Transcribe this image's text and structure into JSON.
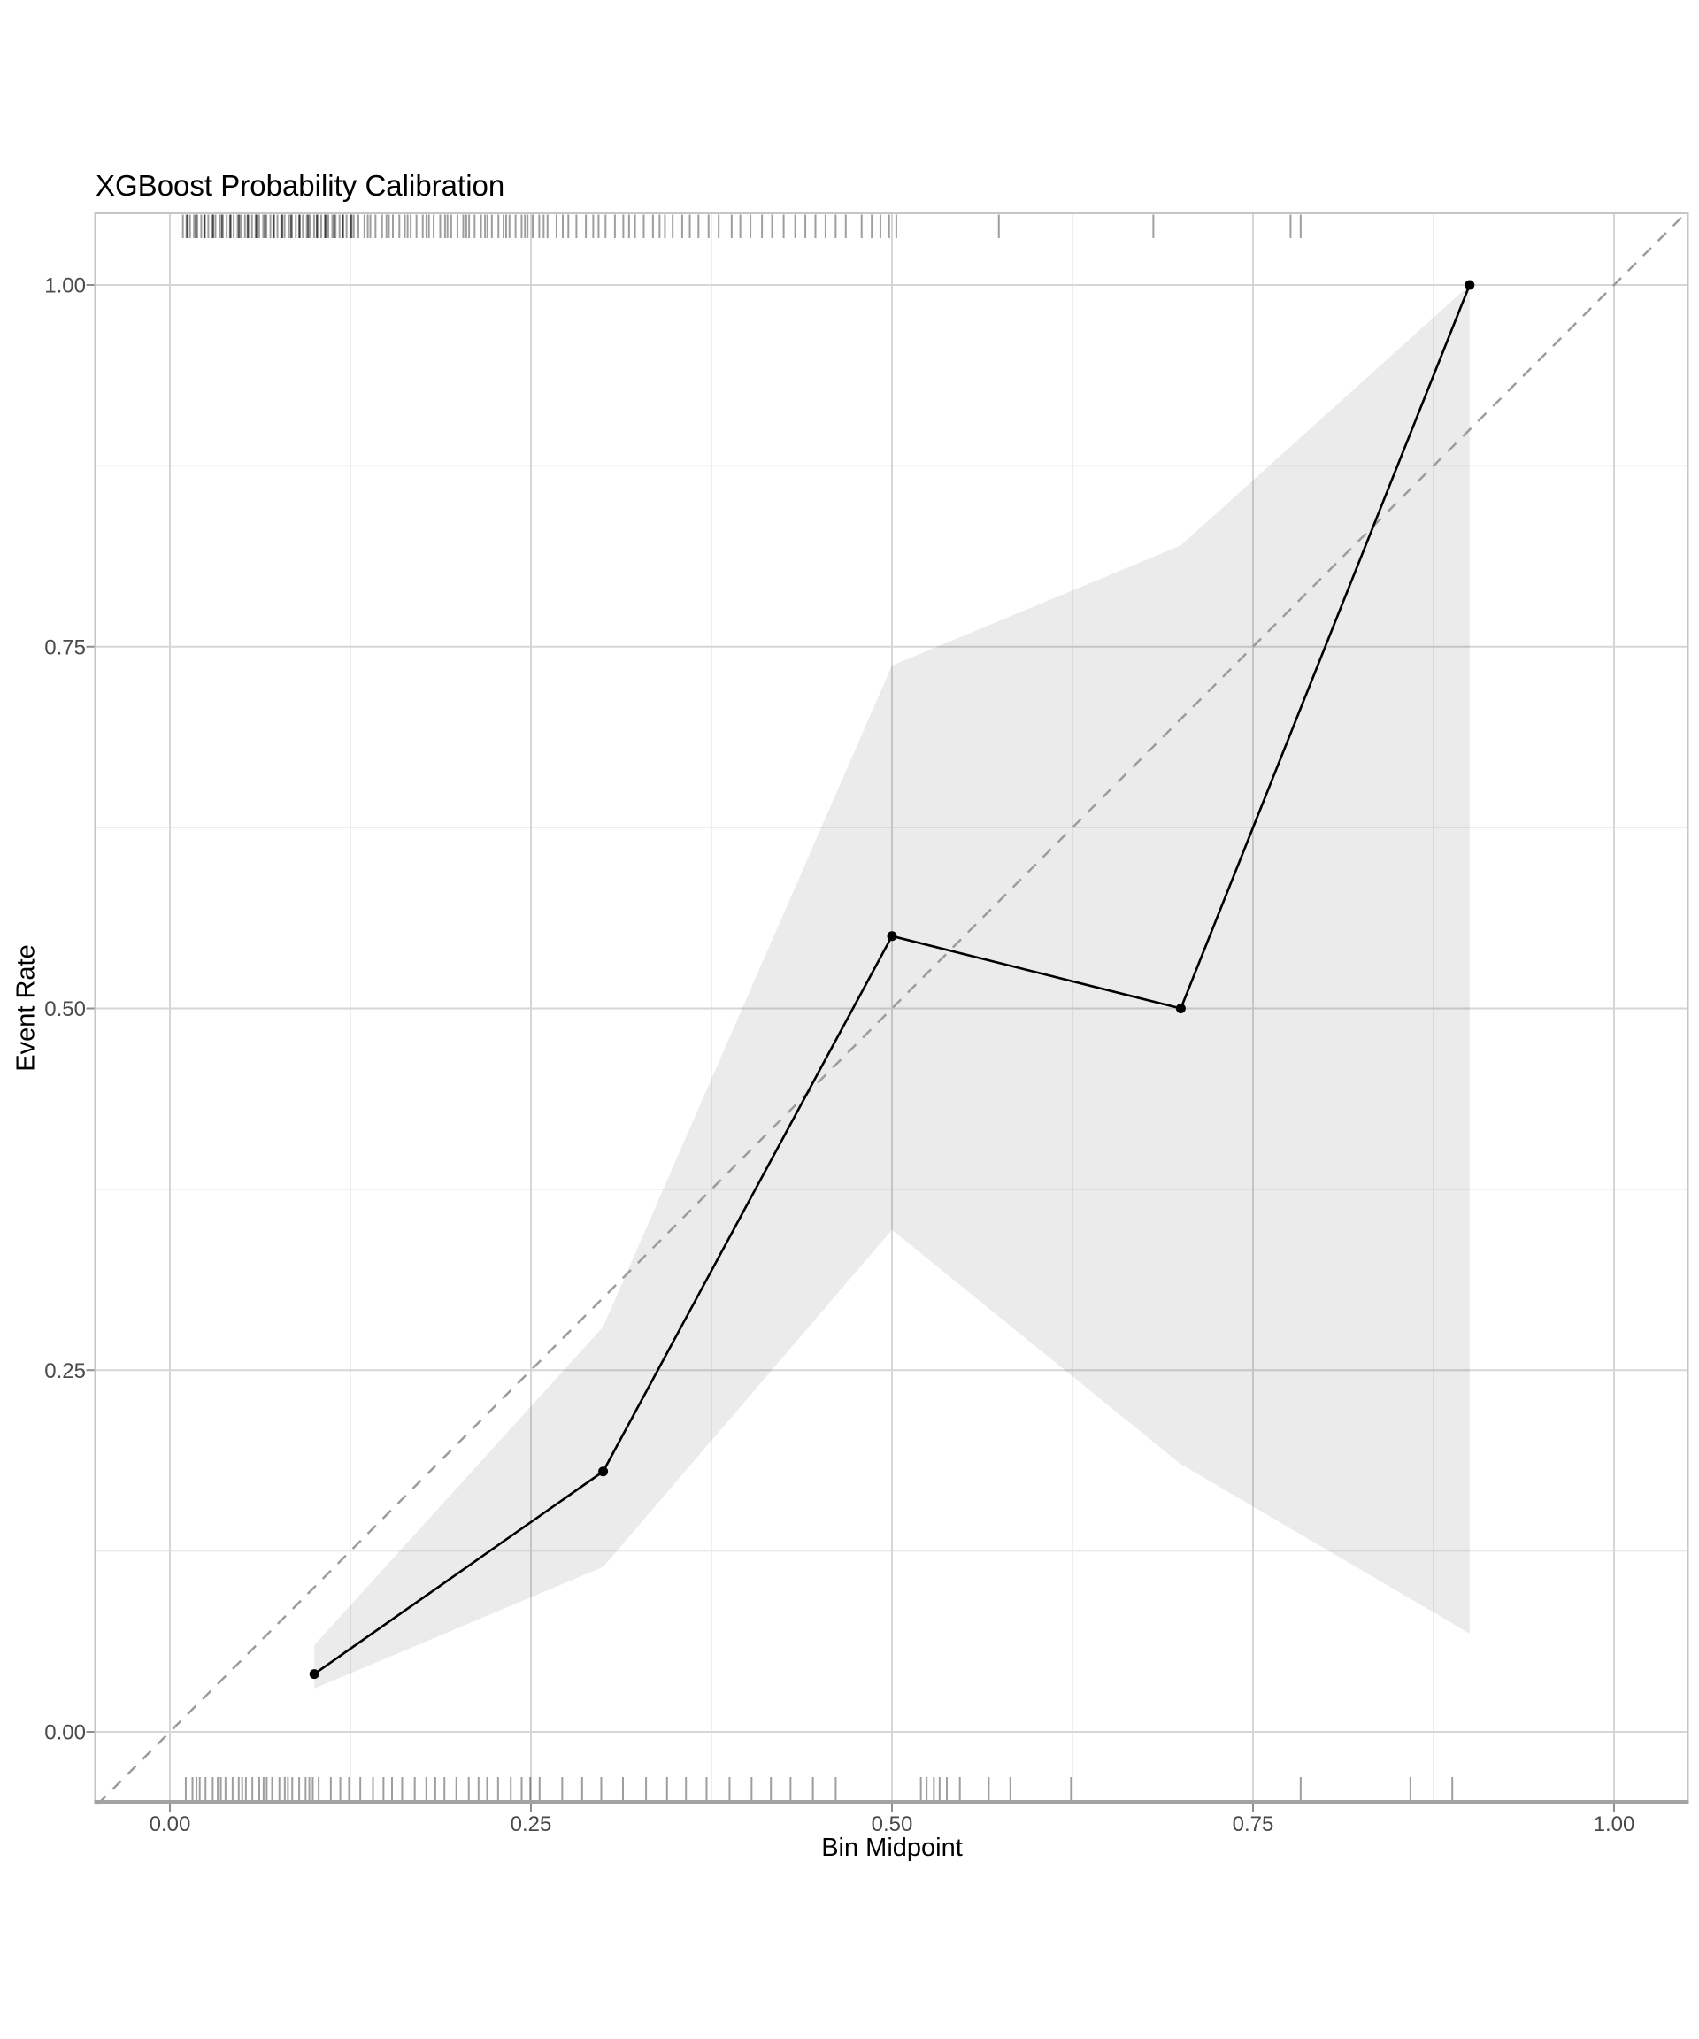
{
  "figure": {
    "title": "XGBoost Probability Calibration",
    "x_axis_label": "Bin Midpoint",
    "y_axis_label": "Event Rate"
  },
  "chart_data": {
    "type": "line",
    "title": "XGBoost Probability Calibration",
    "xlabel": "Bin Midpoint",
    "ylabel": "Event Rate",
    "xlim": [
      -0.05,
      1.05
    ],
    "ylim": [
      -0.05,
      1.05
    ],
    "grid": "major and minor gridlines, light gray on white panel",
    "legend_position": "none",
    "x_ticks": {
      "values": [
        0,
        0.25,
        0.5,
        0.75,
        1.0
      ],
      "labels": [
        "0.00",
        "0.25",
        "0.50",
        "0.75",
        "1.00"
      ],
      "minor": [
        0.125,
        0.375,
        0.625,
        0.875
      ]
    },
    "y_ticks": {
      "values": [
        0,
        0.25,
        0.5,
        0.75,
        1.0
      ],
      "labels": [
        "0.00",
        "0.25",
        "0.50",
        "0.75",
        "1.00"
      ],
      "minor": [
        0.125,
        0.375,
        0.625,
        0.875
      ]
    },
    "calibration_series": {
      "name": "binned-calibration",
      "x": [
        0.1,
        0.3,
        0.5,
        0.7,
        0.9
      ],
      "y": [
        0.04,
        0.18,
        0.55,
        0.5,
        1.0
      ]
    },
    "confidence_ribbon": {
      "x": [
        0.1,
        0.3,
        0.5,
        0.7,
        0.9
      ],
      "ymin": [
        0.03,
        0.114,
        0.347,
        0.185,
        0.068
      ],
      "ymax": [
        0.06,
        0.28,
        0.737,
        0.82,
        1.0
      ]
    },
    "reference_line": {
      "style": "dashed",
      "x": [
        -0.05,
        1.05
      ],
      "y": [
        -0.05,
        1.05
      ]
    },
    "rug_top": {
      "bands": [
        {
          "from": 0.009,
          "to": 0.128,
          "count": 88
        },
        {
          "from": 0.1305,
          "to": 0.258,
          "count": 42
        },
        {
          "from": 0.2615,
          "to": 0.354,
          "count": 19
        }
      ],
      "marks": [
        0.36,
        0.366,
        0.373,
        0.38,
        0.389,
        0.395,
        0.402,
        0.41,
        0.417,
        0.425,
        0.433,
        0.44,
        0.447,
        0.454,
        0.461,
        0.468,
        0.479,
        0.486,
        0.492,
        0.498,
        0.503,
        0.574,
        0.681,
        0.776,
        0.783
      ]
    },
    "rug_bottom": {
      "bands": [
        {
          "from": 0.011,
          "to": 0.1,
          "count": 26
        },
        {
          "from": 0.103,
          "to": 0.25,
          "count": 21
        },
        {
          "from": 0.256,
          "to": 0.46,
          "count": 15
        }
      ],
      "marks": [
        0.52,
        0.524,
        0.529,
        0.533,
        0.538,
        0.547,
        0.567,
        0.582,
        0.624,
        0.783,
        0.859,
        0.888
      ]
    },
    "colors": {
      "line_and_points": "#000000",
      "ribbon_fill": "rgba(0,0,0,0.08)",
      "reference_dash": "#9c9c9c",
      "grid_major": "#d6d6d6",
      "grid_minor": "#e9e9e9",
      "rug_mark": "rgba(0,0,0,0.38)",
      "axis_line": "#a2a2a2",
      "panel_border": "#c6c6c6",
      "tick_mark": "#8f8f8f",
      "tick_label": "#4a4a4a",
      "title_text": "#000000"
    }
  }
}
